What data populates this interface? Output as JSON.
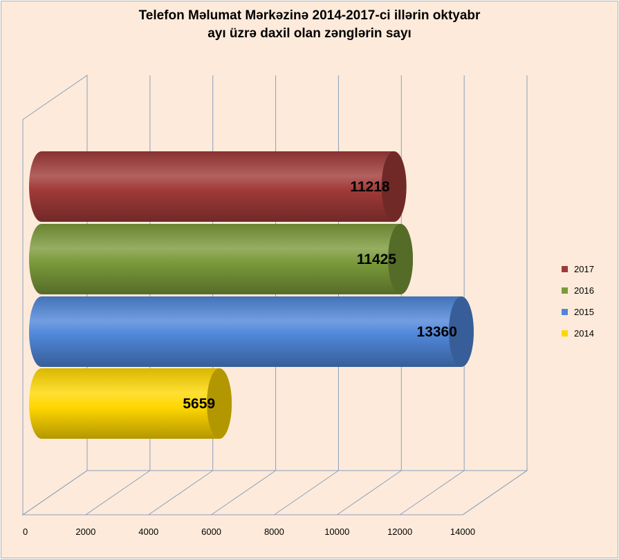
{
  "chart_data": {
    "type": "bar",
    "orientation": "horizontal",
    "style": "3d-cylinder",
    "title_line1": "Telefon Məlumat Mərkəzinə  2014-2017-ci  illərin oktyabr",
    "title_line2": "ayı üzrə  daxil  olan zənglərin sayı",
    "categories": [
      "2014",
      "2015",
      "2016",
      "2017"
    ],
    "values": [
      5659,
      13360,
      11425,
      11218
    ],
    "colors": [
      "#ffd700",
      "#4f86d9",
      "#7a9a3a",
      "#a03a38"
    ],
    "xlim": [
      0,
      14000
    ],
    "x_ticks": [
      "0",
      "2000",
      "4000",
      "6000",
      "8000",
      "10000",
      "12000",
      "14000"
    ],
    "grid": "vertical",
    "legend": {
      "placement": "right",
      "entries": [
        {
          "label": "2017",
          "color": "#a03a38"
        },
        {
          "label": "2016",
          "color": "#7a9a3a"
        },
        {
          "label": "2015",
          "color": "#4f86d9"
        },
        {
          "label": "2014",
          "color": "#ffd700"
        }
      ]
    }
  }
}
